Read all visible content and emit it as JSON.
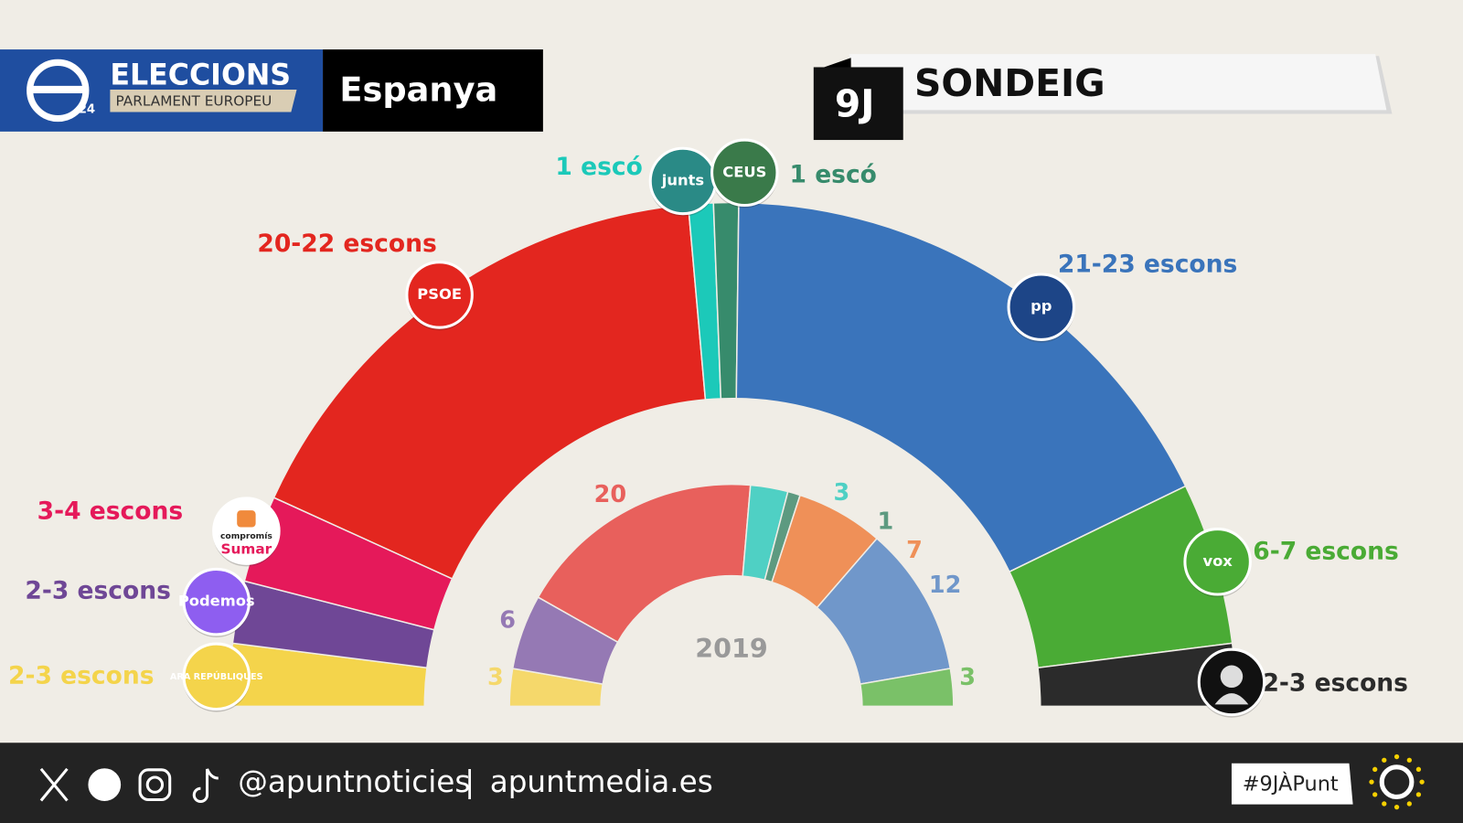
{
  "header": {
    "logo_number": "24",
    "title": "ELECCIONS",
    "subtitle": "PARLAMENT EUROPEU",
    "country": "Espanya",
    "date": "9J",
    "heading": "SONDEIG"
  },
  "chart_data": [
    {
      "type": "parliament",
      "values_low": [
        2,
        2,
        3,
        20,
        1,
        1,
        21,
        6,
        2
      ],
      "values_high": [
        3,
        3,
        4,
        22,
        1,
        1,
        23,
        7,
        3
      ],
      "value_labels": [
        "2-3 escons",
        "2-3 escons",
        "3-4 escons",
        "20-22 escons",
        "1 escó",
        "1 escó",
        "21-23 escons",
        "6-7 escons",
        "2-3 escons"
      ],
      "colors": [
        "#f4d44b",
        "#6f4796",
        "#e5195a",
        "#e3261f",
        "#1cc9b9",
        "#378b6c",
        "#3a74bb",
        "#4aab35",
        "#2b2b2b"
      ],
      "logos": [
        [
          "ARA REPÚBLIQUES"
        ],
        [
          "Podemos"
        ],
        [
          "compromís",
          "Sumar"
        ],
        [
          "PSOE"
        ],
        [
          "junts"
        ],
        [
          "CEUS"
        ],
        [
          "pp"
        ],
        [
          "vox"
        ],
        null
      ]
    },
    {
      "type": "parliament",
      "title": "2019",
      "values": [
        3,
        6,
        20,
        3,
        1,
        7,
        12,
        3
      ],
      "colors": [
        "#f5d86b",
        "#9579b4",
        "#e8605c",
        "#4fd0c4",
        "#5d9a80",
        "#ef9058",
        "#7097ca",
        "#7ac168"
      ]
    }
  ],
  "footer": {
    "handle": "@apuntnoticies",
    "separator": "|",
    "website": "apuntmedia.es",
    "hashtag": "#9JÀPunt"
  }
}
